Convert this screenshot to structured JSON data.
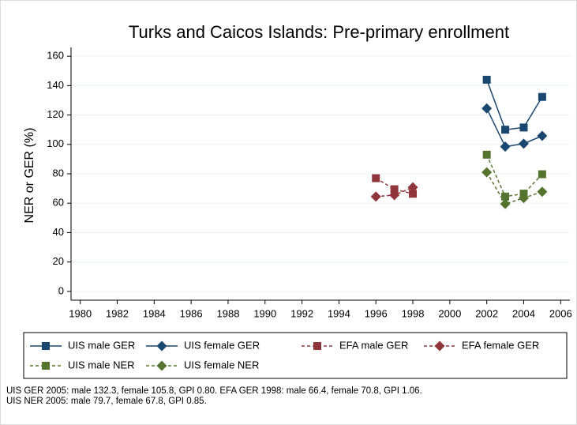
{
  "chart_data": {
    "type": "line",
    "title": "Turks and Caicos Islands: Pre-primary enrollment",
    "y_label": "NER or GER (%)",
    "xlim": [
      1979.5,
      2006.5
    ],
    "xticks": [
      1980,
      1982,
      1984,
      1986,
      1988,
      1990,
      1992,
      1994,
      1996,
      1998,
      2000,
      2002,
      2004,
      2006
    ],
    "ylim": [
      -6,
      166
    ],
    "yticks": [
      0,
      20,
      40,
      60,
      80,
      100,
      120,
      140,
      160
    ],
    "grid": true,
    "legend": "bottom",
    "series": [
      {
        "name": "UIS male GER",
        "color": "#1a476f",
        "marker": "square",
        "dash": false,
        "x": [
          2002,
          2003,
          2004,
          2005
        ],
        "values": [
          144,
          110,
          111.5,
          132.3
        ]
      },
      {
        "name": "UIS female GER",
        "color": "#1a476f",
        "marker": "diamond",
        "dash": false,
        "x": [
          2002,
          2003,
          2004,
          2005
        ],
        "values": [
          124.5,
          98.5,
          100.5,
          105.8
        ]
      },
      {
        "name": "EFA male GER",
        "color": "#90353b",
        "marker": "square",
        "dash": true,
        "x": [
          1996,
          1997,
          1998
        ],
        "values": [
          77,
          69.5,
          66.4
        ]
      },
      {
        "name": "EFA female GER",
        "color": "#90353b",
        "marker": "diamond",
        "dash": true,
        "x": [
          1996,
          1997,
          1998
        ],
        "values": [
          64.5,
          65.5,
          70.8
        ]
      },
      {
        "name": "UIS male NER",
        "color": "#55752f",
        "marker": "square",
        "dash": true,
        "x": [
          2002,
          2003,
          2004,
          2005
        ],
        "values": [
          93,
          64.5,
          66.5,
          79.7
        ]
      },
      {
        "name": "UIS female NER",
        "color": "#55752f",
        "marker": "diamond",
        "dash": true,
        "x": [
          2002,
          2003,
          2004,
          2005
        ],
        "values": [
          81,
          59.5,
          63.5,
          67.8
        ]
      }
    ],
    "notes": [
      "UIS GER 2005: male 132.3, female 105.8, GPI 0.80. EFA GER 1998: male 66.4, female 70.8, GPI 1.06.",
      "UIS NER 2005: male 79.7, female 67.8, GPI 0.85."
    ]
  }
}
